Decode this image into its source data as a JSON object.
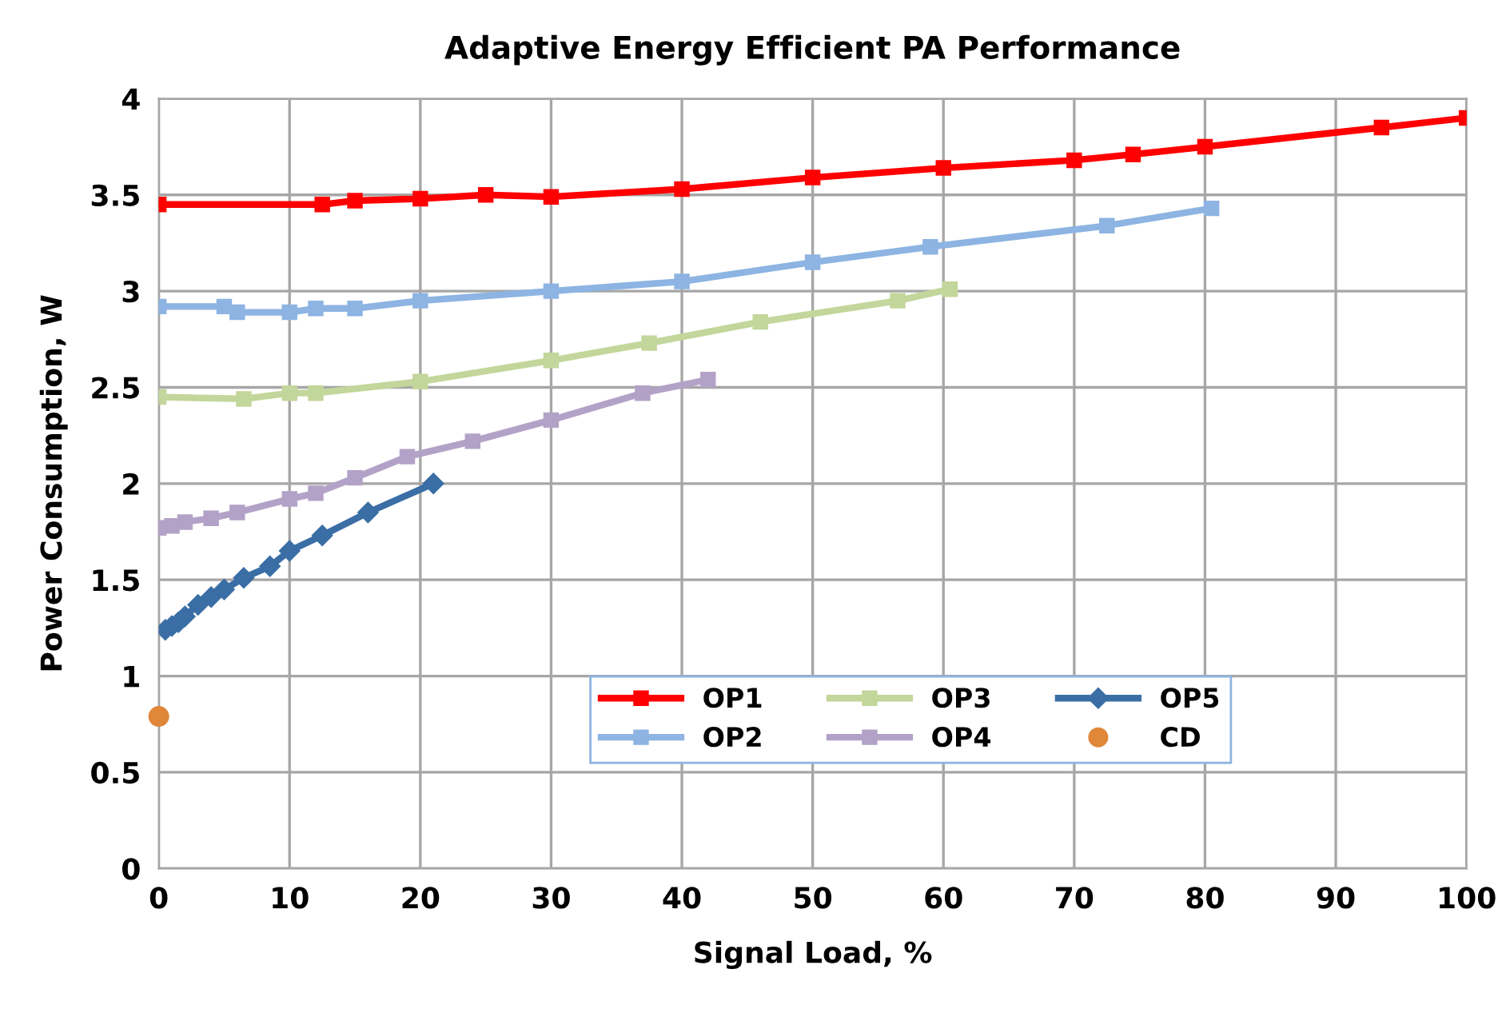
{
  "chart_data": {
    "type": "line",
    "title": "Adaptive Energy Efficient PA Performance",
    "xlabel": "Signal Load, %",
    "ylabel": "Power Consumption, W",
    "xlim": [
      0,
      100
    ],
    "xticks": [
      0,
      10,
      20,
      30,
      40,
      50,
      60,
      70,
      80,
      90,
      100
    ],
    "ylim": [
      0,
      4
    ],
    "yticks": [
      0,
      0.5,
      1,
      1.5,
      2,
      2.5,
      3,
      3.5,
      4
    ],
    "grid": true,
    "legend": "bottom right",
    "series": [
      {
        "name": "OP1",
        "color": "#ff0000",
        "marker": "square",
        "x": [
          0,
          12.5,
          15,
          20,
          25,
          30,
          40,
          50,
          60,
          70,
          74.5,
          80,
          93.5,
          100
        ],
        "values": [
          3.45,
          3.45,
          3.47,
          3.48,
          3.5,
          3.49,
          3.53,
          3.59,
          3.64,
          3.68,
          3.71,
          3.75,
          3.85,
          3.9
        ]
      },
      {
        "name": "OP2",
        "color": "#8db4e2",
        "marker": "square",
        "x": [
          0,
          5,
          6,
          10,
          12,
          15,
          20,
          30,
          40,
          50,
          59,
          72.5,
          80.5
        ],
        "values": [
          2.92,
          2.92,
          2.89,
          2.89,
          2.91,
          2.91,
          2.95,
          3.0,
          3.05,
          3.15,
          3.23,
          3.34,
          3.43
        ]
      },
      {
        "name": "OP3",
        "color": "#c3d69b",
        "marker": "square",
        "x": [
          0,
          6.5,
          10,
          12,
          20,
          30,
          37.5,
          46,
          56.5,
          60.5
        ],
        "values": [
          2.45,
          2.44,
          2.47,
          2.47,
          2.53,
          2.64,
          2.73,
          2.84,
          2.95,
          3.01
        ]
      },
      {
        "name": "OP4",
        "color": "#b3a2c7",
        "marker": "square",
        "x": [
          0,
          1,
          2,
          4,
          6,
          10,
          12,
          15,
          19,
          24,
          30,
          37,
          42
        ],
        "values": [
          1.77,
          1.78,
          1.8,
          1.82,
          1.85,
          1.92,
          1.95,
          2.03,
          2.14,
          2.22,
          2.33,
          2.47,
          2.54
        ]
      },
      {
        "name": "OP5",
        "color": "#3a6ea5",
        "marker": "diamond",
        "x": [
          0.5,
          1,
          1.5,
          2,
          3,
          4,
          5,
          6.5,
          8.5,
          10,
          12.5,
          16,
          21
        ],
        "values": [
          1.24,
          1.26,
          1.28,
          1.31,
          1.37,
          1.41,
          1.45,
          1.51,
          1.57,
          1.65,
          1.73,
          1.85,
          2.0
        ]
      },
      {
        "name": "CD",
        "color": "#e0873a",
        "marker": "circle",
        "type": "scatter",
        "x": [
          0
        ],
        "values": [
          0.79
        ]
      }
    ]
  }
}
